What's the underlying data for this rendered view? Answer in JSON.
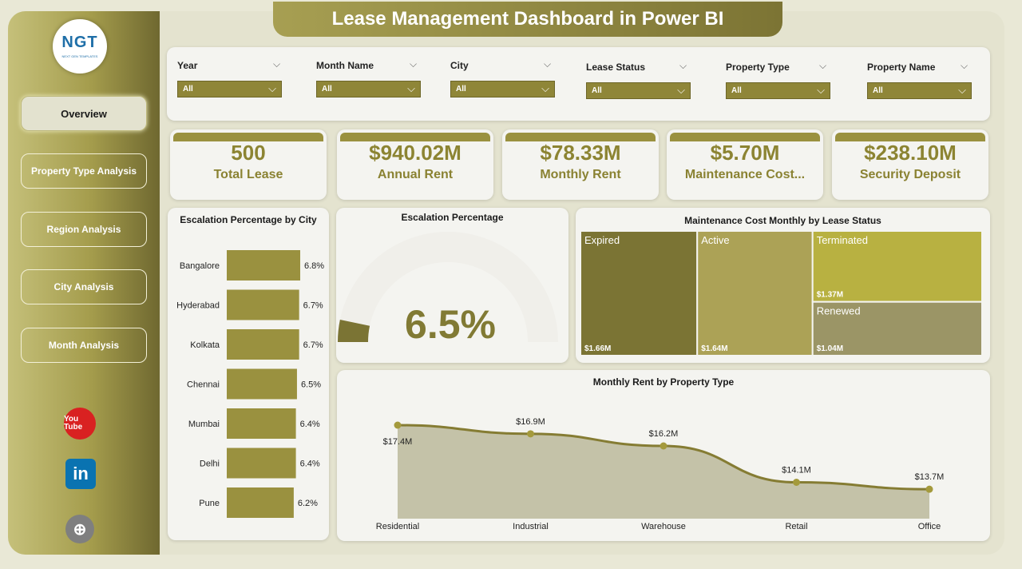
{
  "title": "Lease Management Dashboard in Power BI",
  "logo": {
    "text": "NGT",
    "sub": "NEXT GEN TEMPLATES"
  },
  "nav": [
    {
      "label": "Overview",
      "active": true
    },
    {
      "label": "Property Type Analysis",
      "active": false
    },
    {
      "label": "Region Analysis",
      "active": false
    },
    {
      "label": "City Analysis",
      "active": false
    },
    {
      "label": "Month Analysis",
      "active": false
    }
  ],
  "social": [
    {
      "name": "youtube-icon",
      "text": "You Tube"
    },
    {
      "name": "linkedin-icon",
      "text": "in"
    },
    {
      "name": "website-icon",
      "text": "⊕"
    }
  ],
  "filters": [
    {
      "label": "Year",
      "value": "All"
    },
    {
      "label": "Month Name",
      "value": "All"
    },
    {
      "label": "City",
      "value": "All"
    },
    {
      "label": "Lease Status",
      "value": "All"
    },
    {
      "label": "Property Type",
      "value": "All"
    },
    {
      "label": "Property Name",
      "value": "All"
    }
  ],
  "kpis": [
    {
      "value": "500",
      "label": "Total Lease"
    },
    {
      "value": "$940.02M",
      "label": "Annual Rent"
    },
    {
      "value": "$78.33M",
      "label": "Monthly Rent"
    },
    {
      "value": "$5.70M",
      "label": "Maintenance Cost..."
    },
    {
      "value": "$238.10M",
      "label": "Security Deposit"
    }
  ],
  "colors": {
    "accent": "#9a913f",
    "dark": "#7b7434",
    "tile_active": "#aca256",
    "tile_terminated": "#b8b141",
    "tile_renewed": "#9b9566"
  },
  "chart_data": [
    {
      "type": "bar",
      "title": "Escalation Percentage by City",
      "categories": [
        "Bangalore",
        "Hyderabad",
        "Kolkata",
        "Chennai",
        "Mumbai",
        "Delhi",
        "Pune"
      ],
      "values": [
        6.8,
        6.7,
        6.7,
        6.5,
        6.4,
        6.4,
        6.2
      ],
      "value_labels": [
        "6.8%",
        "6.7%",
        "6.7%",
        "6.5%",
        "6.4%",
        "6.4%",
        "6.2%"
      ],
      "orientation": "horizontal"
    },
    {
      "type": "gauge",
      "title": "Escalation Percentage",
      "value": 6.5,
      "display": "6.5%"
    },
    {
      "type": "treemap",
      "title": "Maintenance Cost Monthly by Lease Status",
      "categories": [
        "Expired",
        "Active",
        "Terminated",
        "Renewed"
      ],
      "values": [
        1.66,
        1.64,
        1.37,
        1.04
      ],
      "value_labels": [
        "$1.66M",
        "$1.64M",
        "$1.37M",
        "$1.04M"
      ]
    },
    {
      "type": "area",
      "title": "Monthly Rent by Property Type",
      "categories": [
        "Residential",
        "Industrial",
        "Warehouse",
        "Retail",
        "Office"
      ],
      "values": [
        17.4,
        16.9,
        16.2,
        14.1,
        13.7
      ],
      "value_labels": [
        "$17.4M",
        "$16.9M",
        "$16.2M",
        "$14.1M",
        "$13.7M"
      ]
    }
  ]
}
